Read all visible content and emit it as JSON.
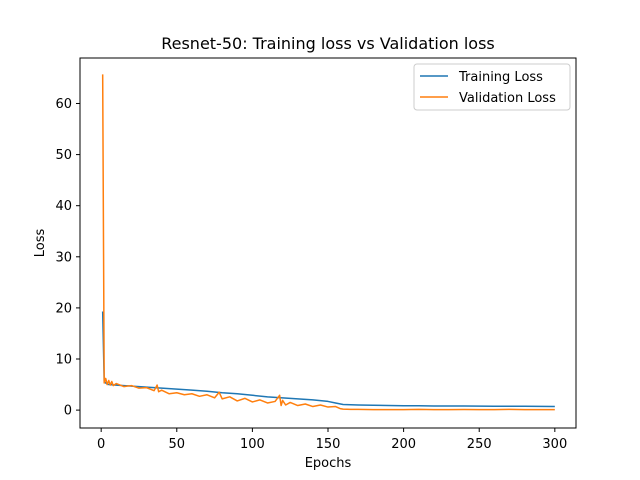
{
  "chart_data": {
    "type": "line",
    "title": "Resnet-50: Training loss vs Validation loss",
    "xlabel": "Epochs",
    "ylabel": "Loss",
    "xlim": [
      -14,
      314
    ],
    "ylim": [
      -3.5,
      68.9
    ],
    "xticks": [
      0,
      50,
      100,
      150,
      200,
      250,
      300
    ],
    "yticks": [
      0,
      10,
      20,
      30,
      40,
      50,
      60
    ],
    "grid": false,
    "legend_position": "top-right",
    "series": [
      {
        "name": "Training Loss",
        "color": "#1f77b4",
        "x": [
          1,
          2,
          3,
          4,
          5,
          10,
          20,
          30,
          40,
          50,
          60,
          70,
          80,
          90,
          100,
          110,
          120,
          130,
          140,
          150,
          155,
          160,
          170,
          180,
          190,
          200,
          210,
          220,
          230,
          240,
          250,
          260,
          270,
          280,
          290,
          300
        ],
        "y": [
          19.3,
          5.6,
          5.3,
          5.1,
          5.0,
          4.9,
          4.7,
          4.5,
          4.3,
          4.1,
          3.9,
          3.7,
          3.4,
          3.2,
          2.9,
          2.6,
          2.4,
          2.2,
          2.0,
          1.7,
          1.4,
          1.1,
          1.0,
          0.95,
          0.9,
          0.85,
          0.85,
          0.8,
          0.8,
          0.8,
          0.78,
          0.75,
          0.75,
          0.75,
          0.72,
          0.7
        ]
      },
      {
        "name": "Validation Loss",
        "color": "#ff7f0e",
        "x": [
          1,
          2,
          3,
          4,
          5,
          6,
          7,
          8,
          10,
          15,
          20,
          25,
          30,
          35,
          37,
          38,
          40,
          45,
          50,
          55,
          60,
          65,
          70,
          75,
          78,
          80,
          85,
          90,
          95,
          100,
          105,
          110,
          115,
          118,
          119,
          120,
          122,
          125,
          130,
          135,
          140,
          145,
          150,
          155,
          158,
          160,
          165,
          170,
          180,
          190,
          200,
          210,
          220,
          230,
          240,
          250,
          260,
          270,
          280,
          290,
          300
        ],
        "y": [
          65.7,
          5.3,
          6.2,
          5.0,
          5.8,
          4.9,
          5.6,
          4.8,
          5.2,
          4.6,
          4.8,
          4.3,
          4.4,
          3.8,
          4.9,
          3.6,
          3.9,
          3.2,
          3.4,
          3.0,
          3.2,
          2.7,
          3.0,
          2.4,
          3.5,
          2.2,
          2.6,
          1.8,
          2.3,
          1.6,
          2.0,
          1.4,
          1.7,
          2.9,
          0.9,
          1.9,
          1.0,
          1.5,
          0.9,
          1.2,
          0.7,
          1.0,
          0.6,
          0.7,
          0.3,
          0.2,
          0.15,
          0.15,
          0.1,
          0.1,
          0.1,
          0.15,
          0.1,
          0.1,
          0.12,
          0.1,
          0.1,
          0.15,
          0.1,
          0.1,
          0.1
        ]
      }
    ]
  }
}
